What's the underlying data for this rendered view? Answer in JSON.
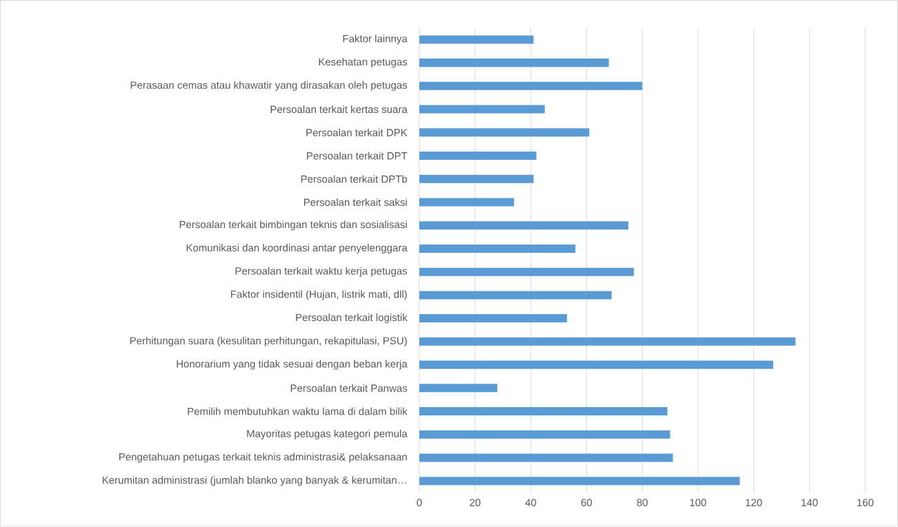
{
  "chart_data": {
    "type": "bar",
    "orientation": "horizontal",
    "categories": [
      "Faktor lainnya",
      "Kesehatan petugas",
      "Perasaan cemas atau khawatir yang dirasakan oleh petugas",
      "Persoalan terkait kertas suara",
      "Persoalan terkait DPK",
      "Persoalan terkait DPT",
      "Persoalan terkait DPTb",
      "Persoalan terkait saksi",
      "Persoalan terkait bimbingan teknis dan sosialisasi",
      "Komunikasi dan koordinasi antar penyelenggara",
      "Persoalan terkait waktu kerja petugas",
      "Faktor insidentil (Hujan, listrik mati, dll)",
      "Persoalan terkait logistik",
      "Perhitungan suara (kesulitan perhitungan, rekapitulasi, PSU)",
      "Honorarium yang tidak sesuai dengan beban kerja",
      "Persoalan terkait Panwas",
      "Pemilih membutuhkan waktu lama di dalam bilik",
      "Mayoritas petugas kategori pemula",
      "Pengetahuan petugas terkait teknis administrasi& pelaksanaan",
      "Kerumitan administrasi (jumlah blanko yang banyak & kerumitan…"
    ],
    "values": [
      41,
      68,
      80,
      45,
      61,
      42,
      41,
      34,
      75,
      56,
      77,
      69,
      53,
      135,
      127,
      28,
      89,
      90,
      91,
      115
    ],
    "color": "#5b9bd5",
    "xlim": [
      0,
      160
    ],
    "xticks": [
      0,
      20,
      40,
      60,
      80,
      100,
      120,
      140,
      160
    ],
    "grid": "x"
  }
}
